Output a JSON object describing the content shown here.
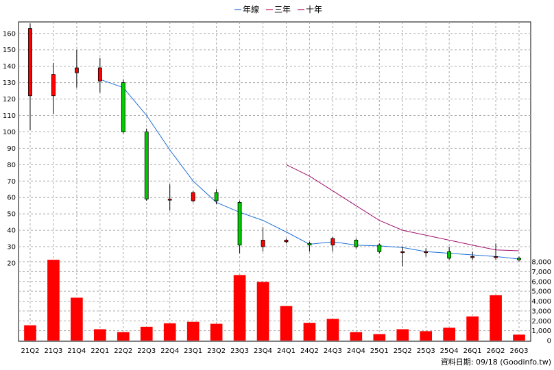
{
  "chart_data": {
    "type": "candlestick",
    "categories": [
      "21Q2",
      "21Q3",
      "21Q4",
      "22Q1",
      "22Q2",
      "22Q3",
      "22Q4",
      "23Q1",
      "23Q2",
      "23Q3",
      "23Q4",
      "24Q1",
      "24Q2",
      "24Q3",
      "24Q4",
      "25Q1",
      "25Q2",
      "25Q3",
      "25Q4",
      "26Q1",
      "26Q2",
      "26Q3"
    ],
    "price": {
      "ylim": [
        20,
        167
      ],
      "ticks": [
        20,
        30,
        40,
        50,
        60,
        70,
        80,
        90,
        100,
        110,
        120,
        130,
        140,
        150,
        160
      ],
      "ohlc": [
        {
          "open": 122,
          "high": 166,
          "low": 101,
          "close": 163
        },
        {
          "open": 122,
          "high": 142,
          "low": 111,
          "close": 135
        },
        {
          "open": 136,
          "high": 150,
          "low": 127,
          "close": 139
        },
        {
          "open": 131,
          "high": 145,
          "low": 124,
          "close": 139
        },
        {
          "open": 130,
          "high": 132,
          "low": 99,
          "close": 100
        },
        {
          "open": 100,
          "high": 102,
          "low": 58,
          "close": 59
        },
        {
          "open": 59,
          "high": 68,
          "low": 52,
          "close": 59
        },
        {
          "open": 58,
          "high": 64,
          "low": 57,
          "close": 63
        },
        {
          "open": 63,
          "high": 65,
          "low": 56,
          "close": 58
        },
        {
          "open": 57,
          "high": 58,
          "low": 26,
          "close": 31
        },
        {
          "open": 30,
          "high": 42,
          "low": 27,
          "close": 34
        },
        {
          "open": 33,
          "high": 35,
          "low": 32,
          "close": 34
        },
        {
          "open": 32,
          "high": 33,
          "low": 27,
          "close": 31
        },
        {
          "open": 31,
          "high": 36,
          "low": 27,
          "close": 35
        },
        {
          "open": 34,
          "high": 35,
          "low": 29,
          "close": 30
        },
        {
          "open": 31,
          "high": 32,
          "low": 26,
          "close": 27
        },
        {
          "open": 27,
          "high": 30,
          "low": 18,
          "close": 27
        },
        {
          "open": 27,
          "high": 29,
          "low": 24,
          "close": 27
        },
        {
          "open": 27,
          "high": 30,
          "low": 22,
          "close": 23
        },
        {
          "open": 24,
          "high": 27,
          "low": 22,
          "close": 24
        },
        {
          "open": 24,
          "high": 32,
          "low": 22,
          "close": 24
        },
        {
          "open": 23,
          "high": 24,
          "low": 21,
          "close": 22
        }
      ]
    },
    "series": [
      {
        "name": "年線",
        "color": "#1f6fd6",
        "points": [
          [
            3,
            132
          ],
          [
            4,
            127
          ],
          [
            5,
            110
          ],
          [
            6,
            89
          ],
          [
            7,
            70
          ],
          [
            8,
            57
          ],
          [
            9,
            51
          ],
          [
            10,
            46
          ],
          [
            11,
            39
          ],
          [
            12,
            31.5
          ],
          [
            13,
            33
          ],
          [
            14,
            31
          ],
          [
            15,
            30.5
          ],
          [
            16,
            29.5
          ],
          [
            17,
            27
          ],
          [
            18,
            26
          ],
          [
            19,
            25
          ],
          [
            20,
            24
          ],
          [
            21,
            22.5
          ]
        ]
      },
      {
        "name": "三年",
        "color": "#d0104c",
        "points": []
      },
      {
        "name": "十年",
        "color": "#a0106f",
        "points": [
          [
            11,
            80
          ],
          [
            12,
            73
          ],
          [
            13,
            64
          ],
          [
            14,
            55
          ],
          [
            15,
            46
          ],
          [
            16,
            40
          ],
          [
            17,
            37
          ],
          [
            18,
            34
          ],
          [
            19,
            31
          ],
          [
            20,
            28
          ],
          [
            21,
            27.5
          ]
        ]
      }
    ],
    "volume": {
      "ylim": [
        0,
        8000
      ],
      "ticks": [
        "0",
        "1,000",
        "2,000",
        "3,000",
        "4,000",
        "5,000",
        "6,000",
        "7,000",
        "8,000"
      ],
      "values": [
        1550,
        8200,
        4350,
        1150,
        850,
        1400,
        1750,
        1900,
        1700,
        6650,
        5950,
        3500,
        1800,
        2200,
        850,
        650,
        1150,
        950,
        1300,
        2450,
        4600,
        600
      ]
    },
    "grid": true,
    "legend_position": "top-center"
  },
  "footer": {
    "source": "資料日期: 09/18  (Goodinfo.tw)"
  },
  "colors": {
    "up": "#ff0000",
    "down": "#00cc00",
    "volume": "#ff0000",
    "grid": "#a8a8a8"
  }
}
